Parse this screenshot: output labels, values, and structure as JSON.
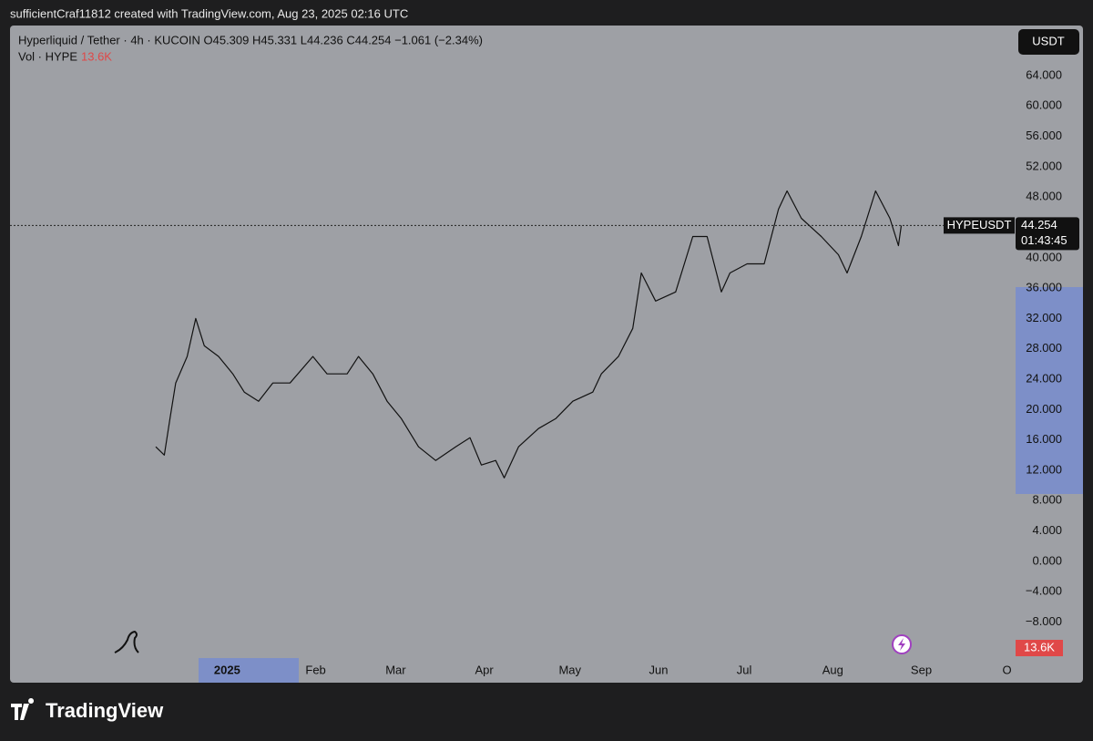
{
  "header": "sufficientCraf11812 created with TradingView.com, Aug 23, 2025 02:16 UTC",
  "footer_logo": "TradingView",
  "chart_data": {
    "type": "line",
    "title": "Hyperliquid / Tether · 4h · KUCOIN  O45.309  H45.331  L44.236  C44.254  −1.061 (−2.34%)",
    "subtitle": "Vol · HYPE",
    "volume_label": "13.6K",
    "currency_button": "USDT",
    "symbol_label": "HYPEUSDT",
    "last_price": 44.254,
    "countdown": "01:43:45",
    "x": [
      -25,
      -22,
      -20,
      -18,
      -14,
      -11,
      -8,
      -3,
      2,
      6,
      11,
      16,
      22,
      30,
      35,
      42,
      46,
      51,
      56,
      61,
      67,
      73,
      80,
      85,
      89,
      94,
      97,
      102,
      109,
      115,
      121,
      128,
      131,
      137,
      142,
      145,
      150,
      157,
      163,
      168,
      173,
      176,
      182,
      188,
      193,
      196,
      201,
      208,
      214,
      217,
      222,
      227,
      232,
      235,
      236
    ],
    "series": [
      {
        "name": "HYPEUSDT",
        "color": "#111111",
        "values": [
          15.1,
          14,
          18.8,
          23.5,
          27,
          32,
          28.4,
          27,
          24.7,
          22.3,
          21.1,
          23.5,
          23.5,
          27,
          24.7,
          24.7,
          27,
          24.7,
          21.1,
          18.8,
          15.1,
          13.3,
          15.1,
          16.3,
          12.7,
          13.3,
          11,
          15.1,
          17.5,
          18.8,
          21.1,
          22.3,
          24.7,
          27,
          30.7,
          38,
          34.3,
          35.5,
          42.8,
          42.8,
          35.5,
          38,
          39.2,
          39.2,
          46.4,
          48.8,
          45.2,
          42.8,
          40.4,
          38,
          42.8,
          48.8,
          45.2,
          41.6,
          44.254
        ]
      }
    ],
    "xlim": [
      -76,
      276
    ],
    "xticks": [
      {
        "value": 0,
        "label": "2025"
      },
      {
        "value": 31,
        "label": "Feb"
      },
      {
        "value": 59,
        "label": "Mar"
      },
      {
        "value": 90,
        "label": "Apr"
      },
      {
        "value": 120,
        "label": "May"
      },
      {
        "value": 151,
        "label": "Jun"
      },
      {
        "value": 181,
        "label": "Jul"
      },
      {
        "value": 212,
        "label": "Aug"
      },
      {
        "value": 243,
        "label": "Sep"
      },
      {
        "value": 273,
        "label": "O"
      }
    ],
    "ylim": [
      -12.5,
      70.6
    ],
    "yticks": [
      {
        "value": 64,
        "label": "64.000"
      },
      {
        "value": 60,
        "label": "60.000"
      },
      {
        "value": 56,
        "label": "56.000"
      },
      {
        "value": 52,
        "label": "52.000"
      },
      {
        "value": 48,
        "label": "48.000"
      },
      {
        "value": 40,
        "label": "40.000"
      },
      {
        "value": 36,
        "label": "36.000"
      },
      {
        "value": 32,
        "label": "32.000"
      },
      {
        "value": 28,
        "label": "28.000"
      },
      {
        "value": 24,
        "label": "24.000"
      },
      {
        "value": 20,
        "label": "20.000"
      },
      {
        "value": 16,
        "label": "16.000"
      },
      {
        "value": 12,
        "label": "12.000"
      },
      {
        "value": 8,
        "label": "8.000"
      },
      {
        "value": 4,
        "label": "4.000"
      },
      {
        "value": 0,
        "label": "0.000"
      },
      {
        "value": -4,
        "label": "−4.000"
      },
      {
        "value": -8,
        "label": "−8.000"
      }
    ],
    "grid": false
  }
}
